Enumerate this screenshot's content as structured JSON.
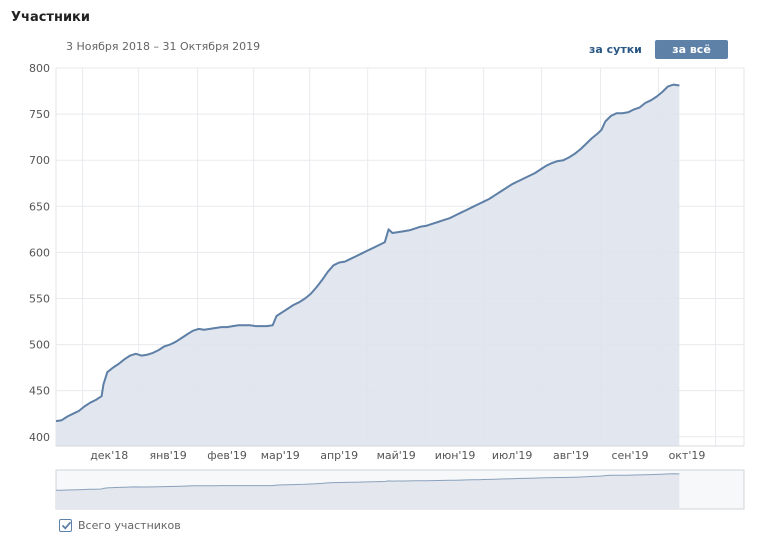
{
  "header": {
    "title": "Участники",
    "date_range": "3 Ноября 2018 – 31 Октября 2019",
    "btn_day": "за сутки",
    "btn_all": "за всё время"
  },
  "legend": {
    "label": "Всего участников",
    "checked": true
  },
  "colors": {
    "line": "#5e7fa6",
    "fill": "#dde3ec",
    "grid": "#e8eaed",
    "accent": "#5e81a8"
  },
  "chart_data": {
    "type": "area",
    "y_ticks": [
      400,
      450,
      500,
      550,
      600,
      650,
      700,
      750,
      800
    ],
    "ylim": [
      390,
      800
    ],
    "xlim": [
      0,
      362
    ],
    "x_tick_labels": [
      {
        "day": 28,
        "label": "дек'18"
      },
      {
        "day": 59,
        "label": "янв'19"
      },
      {
        "day": 90,
        "label": "фев'19"
      },
      {
        "day": 118,
        "label": "мар'19"
      },
      {
        "day": 149,
        "label": "апр'19"
      },
      {
        "day": 179,
        "label": "май'19"
      },
      {
        "day": 210,
        "label": "июн'19"
      },
      {
        "day": 240,
        "label": "июл'19"
      },
      {
        "day": 271,
        "label": "авг'19"
      },
      {
        "day": 302,
        "label": "сен'19"
      },
      {
        "day": 332,
        "label": "окт'19"
      }
    ],
    "series": [
      {
        "points": [
          [
            0,
            417
          ],
          [
            3,
            418
          ],
          [
            6,
            422
          ],
          [
            9,
            425
          ],
          [
            12,
            428
          ],
          [
            15,
            433
          ],
          [
            18,
            437
          ],
          [
            21,
            440
          ],
          [
            24,
            444
          ],
          [
            25,
            457
          ],
          [
            27,
            470
          ],
          [
            30,
            475
          ],
          [
            33,
            479
          ],
          [
            36,
            484
          ],
          [
            39,
            488
          ],
          [
            42,
            490
          ],
          [
            45,
            488
          ],
          [
            48,
            489
          ],
          [
            51,
            491
          ],
          [
            54,
            494
          ],
          [
            57,
            498
          ],
          [
            60,
            500
          ],
          [
            63,
            503
          ],
          [
            66,
            507
          ],
          [
            69,
            511
          ],
          [
            72,
            515
          ],
          [
            75,
            517
          ],
          [
            78,
            516
          ],
          [
            81,
            517
          ],
          [
            84,
            518
          ],
          [
            87,
            519
          ],
          [
            90,
            519
          ],
          [
            93,
            520
          ],
          [
            96,
            521
          ],
          [
            99,
            521
          ],
          [
            102,
            521
          ],
          [
            105,
            520
          ],
          [
            108,
            520
          ],
          [
            111,
            520
          ],
          [
            114,
            521
          ],
          [
            116,
            531
          ],
          [
            119,
            535
          ],
          [
            122,
            539
          ],
          [
            125,
            543
          ],
          [
            128,
            546
          ],
          [
            131,
            550
          ],
          [
            134,
            555
          ],
          [
            137,
            562
          ],
          [
            140,
            570
          ],
          [
            143,
            579
          ],
          [
            146,
            586
          ],
          [
            149,
            589
          ],
          [
            152,
            590
          ],
          [
            155,
            593
          ],
          [
            158,
            596
          ],
          [
            161,
            599
          ],
          [
            164,
            602
          ],
          [
            167,
            605
          ],
          [
            170,
            608
          ],
          [
            173,
            611
          ],
          [
            175,
            625
          ],
          [
            177,
            621
          ],
          [
            180,
            622
          ],
          [
            183,
            623
          ],
          [
            186,
            624
          ],
          [
            189,
            626
          ],
          [
            192,
            628
          ],
          [
            195,
            629
          ],
          [
            198,
            631
          ],
          [
            201,
            633
          ],
          [
            204,
            635
          ],
          [
            207,
            637
          ],
          [
            210,
            640
          ],
          [
            213,
            643
          ],
          [
            216,
            646
          ],
          [
            219,
            649
          ],
          [
            222,
            652
          ],
          [
            225,
            655
          ],
          [
            228,
            658
          ],
          [
            231,
            662
          ],
          [
            234,
            666
          ],
          [
            237,
            670
          ],
          [
            240,
            674
          ],
          [
            243,
            677
          ],
          [
            246,
            680
          ],
          [
            249,
            683
          ],
          [
            252,
            686
          ],
          [
            255,
            690
          ],
          [
            258,
            694
          ],
          [
            261,
            697
          ],
          [
            264,
            699
          ],
          [
            267,
            700
          ],
          [
            270,
            703
          ],
          [
            273,
            707
          ],
          [
            276,
            712
          ],
          [
            279,
            718
          ],
          [
            282,
            724
          ],
          [
            285,
            729
          ],
          [
            287,
            733
          ],
          [
            289,
            742
          ],
          [
            292,
            748
          ],
          [
            295,
            751
          ],
          [
            298,
            751
          ],
          [
            301,
            752
          ],
          [
            304,
            755
          ],
          [
            307,
            757
          ],
          [
            310,
            762
          ],
          [
            313,
            765
          ],
          [
            316,
            769
          ],
          [
            319,
            774
          ],
          [
            322,
            780
          ],
          [
            325,
            782
          ],
          [
            328,
            781
          ]
        ]
      }
    ]
  }
}
